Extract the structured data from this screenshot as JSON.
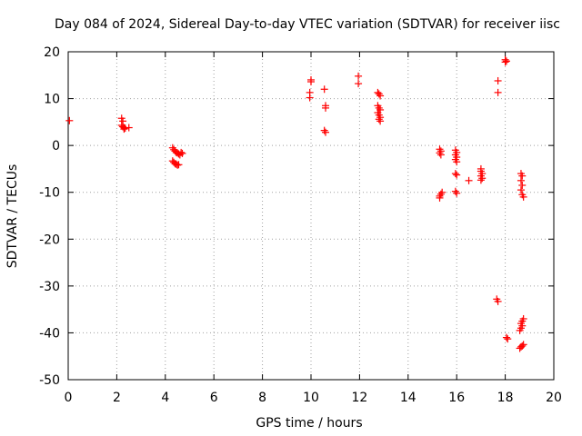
{
  "chart_data": {
    "type": "scatter",
    "title": "Day 084 of 2024, Sidereal Day-to-day VTEC variation (SDTVAR) for receiver iisc",
    "xlabel": "GPS time / hours",
    "ylabel": "SDTVAR / TECUs",
    "xlim": [
      0,
      20
    ],
    "ylim": [
      -50,
      20
    ],
    "xticks": [
      0,
      2,
      4,
      6,
      8,
      10,
      12,
      14,
      16,
      18,
      20
    ],
    "yticks": [
      -50,
      -40,
      -30,
      -20,
      -10,
      0,
      10,
      20
    ],
    "grid": true,
    "legend": "none",
    "marker": "plus",
    "color": "#ff0000",
    "series": [
      {
        "name": "iisc",
        "points": [
          [
            0.05,
            5.3
          ],
          [
            2.2,
            5.8
          ],
          [
            2.25,
            5.2
          ],
          [
            2.2,
            4.3
          ],
          [
            2.25,
            4.0
          ],
          [
            2.3,
            3.8
          ],
          [
            2.35,
            3.7
          ],
          [
            2.3,
            3.5
          ],
          [
            2.5,
            3.8
          ],
          [
            4.3,
            -0.5
          ],
          [
            4.35,
            -0.9
          ],
          [
            4.4,
            -1.2
          ],
          [
            4.45,
            -1.5
          ],
          [
            4.5,
            -1.6
          ],
          [
            4.55,
            -1.8
          ],
          [
            4.6,
            -2.0
          ],
          [
            4.7,
            -1.7
          ],
          [
            4.65,
            -1.5
          ],
          [
            4.3,
            -3.3
          ],
          [
            4.35,
            -3.6
          ],
          [
            4.4,
            -3.9
          ],
          [
            4.45,
            -4.0
          ],
          [
            4.5,
            -4.2
          ],
          [
            4.55,
            -4.1
          ],
          [
            10.0,
            14.0
          ],
          [
            10.0,
            13.6
          ],
          [
            9.95,
            11.3
          ],
          [
            9.95,
            10.2
          ],
          [
            10.55,
            12.0
          ],
          [
            10.6,
            8.5
          ],
          [
            10.6,
            8.0
          ],
          [
            10.55,
            3.2
          ],
          [
            10.6,
            2.8
          ],
          [
            11.95,
            14.8
          ],
          [
            11.95,
            13.2
          ],
          [
            12.75,
            11.3
          ],
          [
            12.8,
            11.0
          ],
          [
            12.85,
            10.6
          ],
          [
            12.75,
            8.5
          ],
          [
            12.8,
            8.0
          ],
          [
            12.85,
            7.6
          ],
          [
            12.75,
            7.0
          ],
          [
            12.8,
            6.5
          ],
          [
            12.85,
            6.0
          ],
          [
            12.8,
            5.6
          ],
          [
            12.85,
            5.2
          ],
          [
            15.3,
            -0.8
          ],
          [
            15.35,
            -1.2
          ],
          [
            15.3,
            -1.6
          ],
          [
            15.35,
            -2.0
          ],
          [
            15.4,
            -10.0
          ],
          [
            15.35,
            -10.4
          ],
          [
            15.3,
            -10.8
          ],
          [
            15.3,
            -11.2
          ],
          [
            15.95,
            -1.0
          ],
          [
            16.0,
            -1.5
          ],
          [
            15.95,
            -2.0
          ],
          [
            16.0,
            -2.5
          ],
          [
            15.95,
            -3.0
          ],
          [
            16.0,
            -3.5
          ],
          [
            15.95,
            -6.0
          ],
          [
            16.0,
            -6.3
          ],
          [
            15.95,
            -9.8
          ],
          [
            16.0,
            -10.2
          ],
          [
            16.5,
            -7.5
          ],
          [
            17.0,
            -5.0
          ],
          [
            17.0,
            -5.5
          ],
          [
            17.05,
            -6.0
          ],
          [
            17.0,
            -6.5
          ],
          [
            17.05,
            -7.0
          ],
          [
            17.0,
            -7.4
          ],
          [
            17.7,
            13.8
          ],
          [
            17.7,
            11.3
          ],
          [
            17.65,
            -32.8
          ],
          [
            17.7,
            -33.3
          ],
          [
            18.0,
            18.3
          ],
          [
            18.05,
            18.0
          ],
          [
            18.0,
            17.8
          ],
          [
            18.05,
            -41.0
          ],
          [
            18.1,
            -41.3
          ],
          [
            18.65,
            -6.0
          ],
          [
            18.7,
            -6.5
          ],
          [
            18.65,
            -7.5
          ],
          [
            18.7,
            -8.5
          ],
          [
            18.65,
            -9.5
          ],
          [
            18.7,
            -10.5
          ],
          [
            18.75,
            -11.0
          ],
          [
            18.75,
            -37.0
          ],
          [
            18.7,
            -37.5
          ],
          [
            18.65,
            -38.0
          ],
          [
            18.7,
            -38.5
          ],
          [
            18.65,
            -39.0
          ],
          [
            18.6,
            -39.5
          ],
          [
            18.6,
            -43.3
          ],
          [
            18.65,
            -43.0
          ],
          [
            18.7,
            -42.8
          ],
          [
            18.75,
            -42.5
          ]
        ]
      }
    ]
  }
}
